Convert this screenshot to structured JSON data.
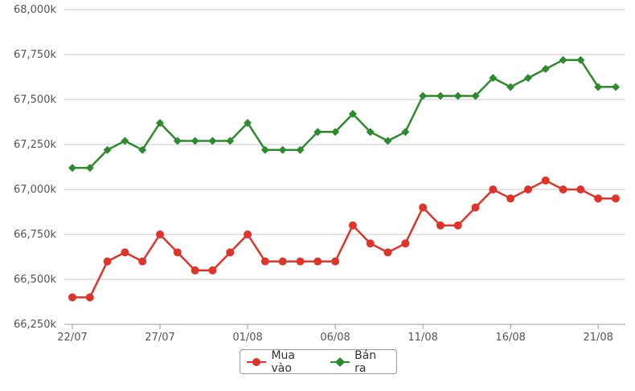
{
  "chart_data": {
    "type": "line",
    "title": "",
    "xlabel": "",
    "ylabel": "",
    "ylim": [
      66250,
      68000
    ],
    "yticks": [
      "66,250k",
      "66,500k",
      "66,750k",
      "67,000k",
      "67,250k",
      "67,500k",
      "67,750k",
      "68,000k"
    ],
    "ytick_values": [
      66250,
      66500,
      66750,
      67000,
      67250,
      67500,
      67750,
      68000
    ],
    "x_tick_labels": [
      "22/07",
      "27/07",
      "01/08",
      "06/08",
      "11/08",
      "16/08",
      "21/08"
    ],
    "x_tick_indices": [
      0,
      5,
      10,
      15,
      20,
      25,
      30
    ],
    "grid": true,
    "legend_placement": "bottom-center",
    "series": [
      {
        "name": "Mua vào",
        "color": "#e0342a",
        "marker": "circle",
        "values": [
          66400,
          66400,
          66600,
          66650,
          66600,
          66750,
          66650,
          66550,
          66550,
          66650,
          66750,
          66600,
          66600,
          66600,
          66600,
          66600,
          66800,
          66700,
          66650,
          66700,
          66900,
          66800,
          66800,
          66900,
          67000,
          66950,
          67000,
          67050,
          67000,
          67000,
          66950,
          66950
        ]
      },
      {
        "name": "Bán ra",
        "color": "#2d8a2d",
        "marker": "diamond",
        "values": [
          67120,
          67120,
          67220,
          67270,
          67220,
          67370,
          67270,
          67270,
          67270,
          67270,
          67370,
          67220,
          67220,
          67220,
          67320,
          67320,
          67420,
          67320,
          67270,
          67320,
          67520,
          67520,
          67520,
          67520,
          67620,
          67570,
          67620,
          67670,
          67720,
          67720,
          67570,
          67570
        ]
      }
    ]
  }
}
